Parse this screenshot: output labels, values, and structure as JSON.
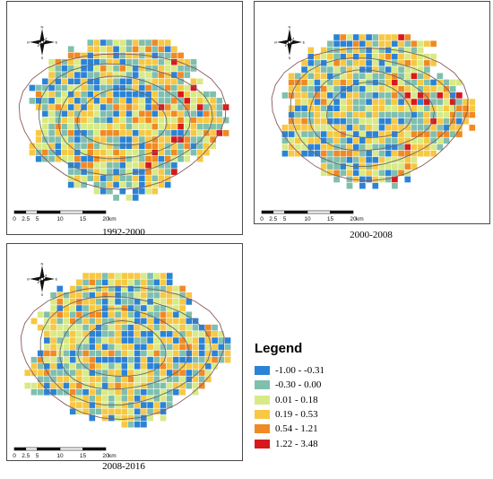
{
  "maps": [
    {
      "period": "1992-2000"
    },
    {
      "period": "2000-2008"
    },
    {
      "period": "2008-2016"
    }
  ],
  "scale_bar": {
    "ticks": [
      "0",
      "2.5",
      "5",
      "10",
      "15",
      "20"
    ],
    "unit": "km"
  },
  "compass": {
    "north": "N",
    "south": "S",
    "east": "E",
    "west": "W"
  },
  "legend": {
    "title": "Legend",
    "classes": [
      {
        "label": "-1.00 - -0.31",
        "color": "#2b83d6"
      },
      {
        "label": "-0.30 - 0.00",
        "color": "#7fbfae"
      },
      {
        "label": "0.01 - 0.18",
        "color": "#d8ea86"
      },
      {
        "label": "0.19 - 0.53",
        "color": "#f7c843"
      },
      {
        "label": "0.54 - 1.21",
        "color": "#f08a24"
      },
      {
        "label": "1.22 - 3.48",
        "color": "#d7191c"
      }
    ]
  }
}
